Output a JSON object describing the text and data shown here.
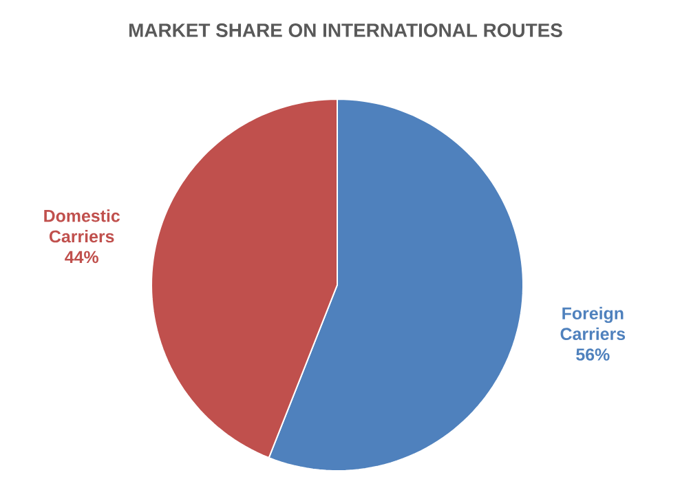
{
  "chart_data": {
    "type": "pie",
    "title": "MARKET SHARE ON INTERNATIONAL ROUTES",
    "categories": [
      "Foreign Carriers",
      "Domestic Carriers"
    ],
    "values": [
      56,
      44
    ],
    "value_labels": [
      "56%",
      "44%"
    ],
    "colors": [
      "#4f81bd",
      "#c0504d"
    ]
  }
}
